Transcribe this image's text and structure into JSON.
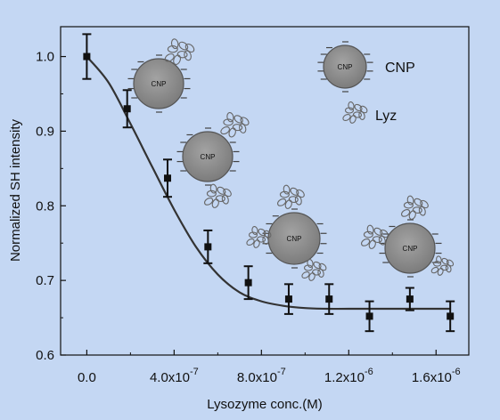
{
  "chart_data": {
    "type": "scatter",
    "title": "",
    "xlabel": "Lysozyme conc.(M)",
    "ylabel": "Normalized SH intensity",
    "xlim": [
      -1.2e-07,
      1.75e-06
    ],
    "ylim": [
      0.6,
      1.04
    ],
    "x_ticks": [
      {
        "value": 0,
        "mantissa": "0.0",
        "exponent": ""
      },
      {
        "value": 4e-07,
        "mantissa": "4.0x10",
        "exponent": "-7"
      },
      {
        "value": 8e-07,
        "mantissa": "8.0x10",
        "exponent": "-7"
      },
      {
        "value": 1.2e-06,
        "mantissa": "1.2x10",
        "exponent": "-6"
      },
      {
        "value": 1.6e-06,
        "mantissa": "1.6x10",
        "exponent": "-6"
      }
    ],
    "y_ticks": [
      {
        "value": 0.6,
        "label": "0.6"
      },
      {
        "value": 0.7,
        "label": "0.7"
      },
      {
        "value": 0.8,
        "label": "0.8"
      },
      {
        "value": 0.9,
        "label": "0.9"
      },
      {
        "value": 1.0,
        "label": "1.0"
      }
    ],
    "points": [
      {
        "x": 0,
        "y": 1.0,
        "err": 0.03
      },
      {
        "x": 1.85e-07,
        "y": 0.93,
        "err": 0.025
      },
      {
        "x": 3.7e-07,
        "y": 0.837,
        "err": 0.025
      },
      {
        "x": 5.55e-07,
        "y": 0.745,
        "err": 0.022
      },
      {
        "x": 7.4e-07,
        "y": 0.697,
        "err": 0.022
      },
      {
        "x": 9.25e-07,
        "y": 0.675,
        "err": 0.02
      },
      {
        "x": 1.11e-06,
        "y": 0.675,
        "err": 0.02
      },
      {
        "x": 1.295e-06,
        "y": 0.652,
        "err": 0.02
      },
      {
        "x": 1.48e-06,
        "y": 0.675,
        "err": 0.015
      },
      {
        "x": 1.665e-06,
        "y": 0.652,
        "err": 0.02
      }
    ],
    "fit_curve": {
      "x": [
        0,
        1e-07,
        2e-07,
        3e-07,
        4e-07,
        5e-07,
        6e-07,
        7e-07,
        8e-07,
        9e-07,
        1e-06,
        1.1e-06,
        1.2e-06,
        1.4e-06,
        1.665e-06
      ],
      "y": [
        1.0,
        0.965,
        0.91,
        0.852,
        0.795,
        0.745,
        0.708,
        0.684,
        0.672,
        0.666,
        0.663,
        0.662,
        0.662,
        0.662,
        0.662
      ]
    },
    "colors": {
      "background": "#c4d7f3",
      "marker": "#111111",
      "curve": "#333333",
      "particle": "#8a8a8a",
      "particle_edge": "#555555"
    }
  },
  "legend": {
    "cnp_label": "CNP",
    "lyz_label": "Lyz"
  },
  "illustration": {
    "particle_label": "CNP"
  }
}
